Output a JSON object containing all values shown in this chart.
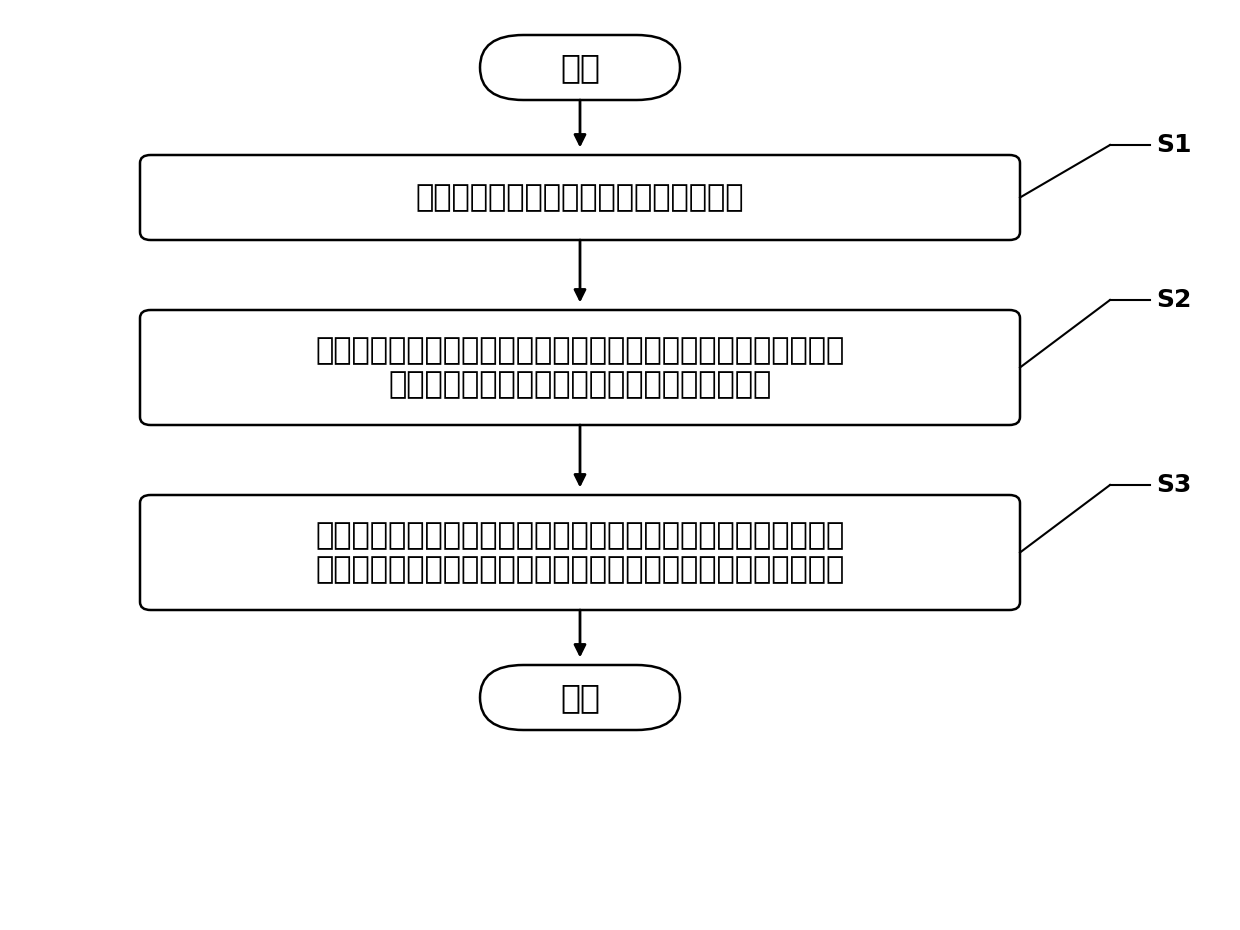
{
  "background_color": "#ffffff",
  "start_label": "开始",
  "end_label": "结束",
  "box1_line1": "构建影像数据处理子系统并对其进行训练",
  "box2_line1": "将待识别的心血管影像输入到训练好的影像数据处理子系统中，得",
  "box2_line2": "到正确标注的心血管影像，并输入到云数据库中",
  "box3_line1": "将云数据库中正确标注的心血管影像输入到训练好的全心七维模型",
  "box3_line2": "构建子系统中，构建出对应的全心七维模型，用于心血管影像识别",
  "step_labels": [
    "S1",
    "S2",
    "S3"
  ],
  "arrow_color": "#000000",
  "box_edge_color": "#000000",
  "box_face_color": "#ffffff",
  "text_color": "#000000",
  "font_size_box": 22,
  "font_size_terminal": 24,
  "font_size_step": 18,
  "fig_width": 12.4,
  "fig_height": 9.3,
  "dpi": 100
}
